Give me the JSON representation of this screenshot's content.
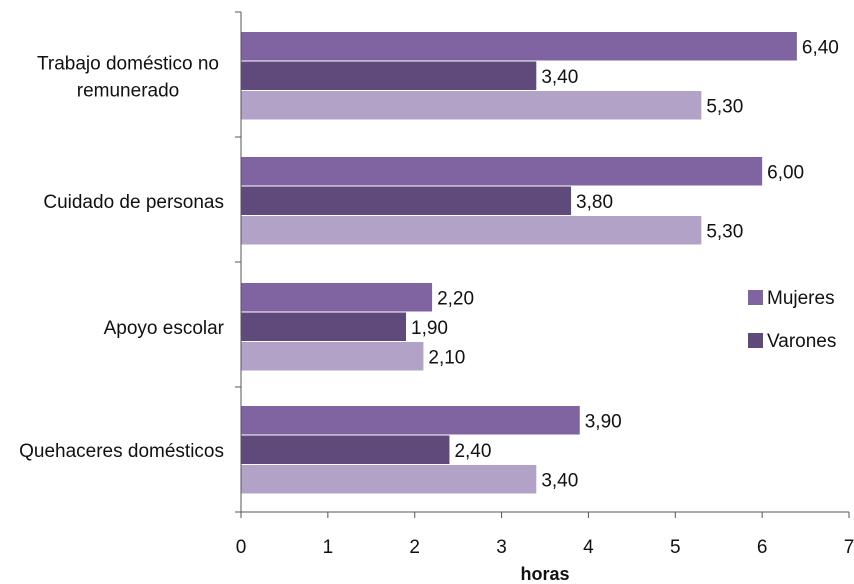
{
  "chart_data": {
    "type": "bar",
    "orientation": "horizontal",
    "categories": [
      [
        "Trabajo doméstico no",
        "remunerado"
      ],
      [
        "Cuidado de personas"
      ],
      [
        "Apoyo escolar"
      ],
      [
        "Quehaceres domésticos"
      ]
    ],
    "series": [
      {
        "name": "Mujeres",
        "values": [
          6.4,
          6.0,
          2.2,
          3.9
        ],
        "labels": [
          "6,40",
          "6,00",
          "2,20",
          "3,90"
        ],
        "color": "#8064a2"
      },
      {
        "name": "Varones",
        "values": [
          3.4,
          3.8,
          1.9,
          2.4
        ],
        "labels": [
          "3,40",
          "3,80",
          "1,90",
          "2,40"
        ],
        "color": "#604a7b"
      },
      {
        "values": [
          5.3,
          5.3,
          2.1,
          3.4
        ],
        "labels": [
          "5,30",
          "5,30",
          "2,10",
          "3,40"
        ],
        "color": "#b3a2c7"
      }
    ],
    "xlabel": "horas",
    "ylabel": "",
    "title": "",
    "xlim": [
      0,
      7
    ],
    "xticks": [
      "0",
      "1",
      "2",
      "3",
      "4",
      "5",
      "6",
      "7"
    ],
    "grid": false,
    "legend_position": "right"
  }
}
